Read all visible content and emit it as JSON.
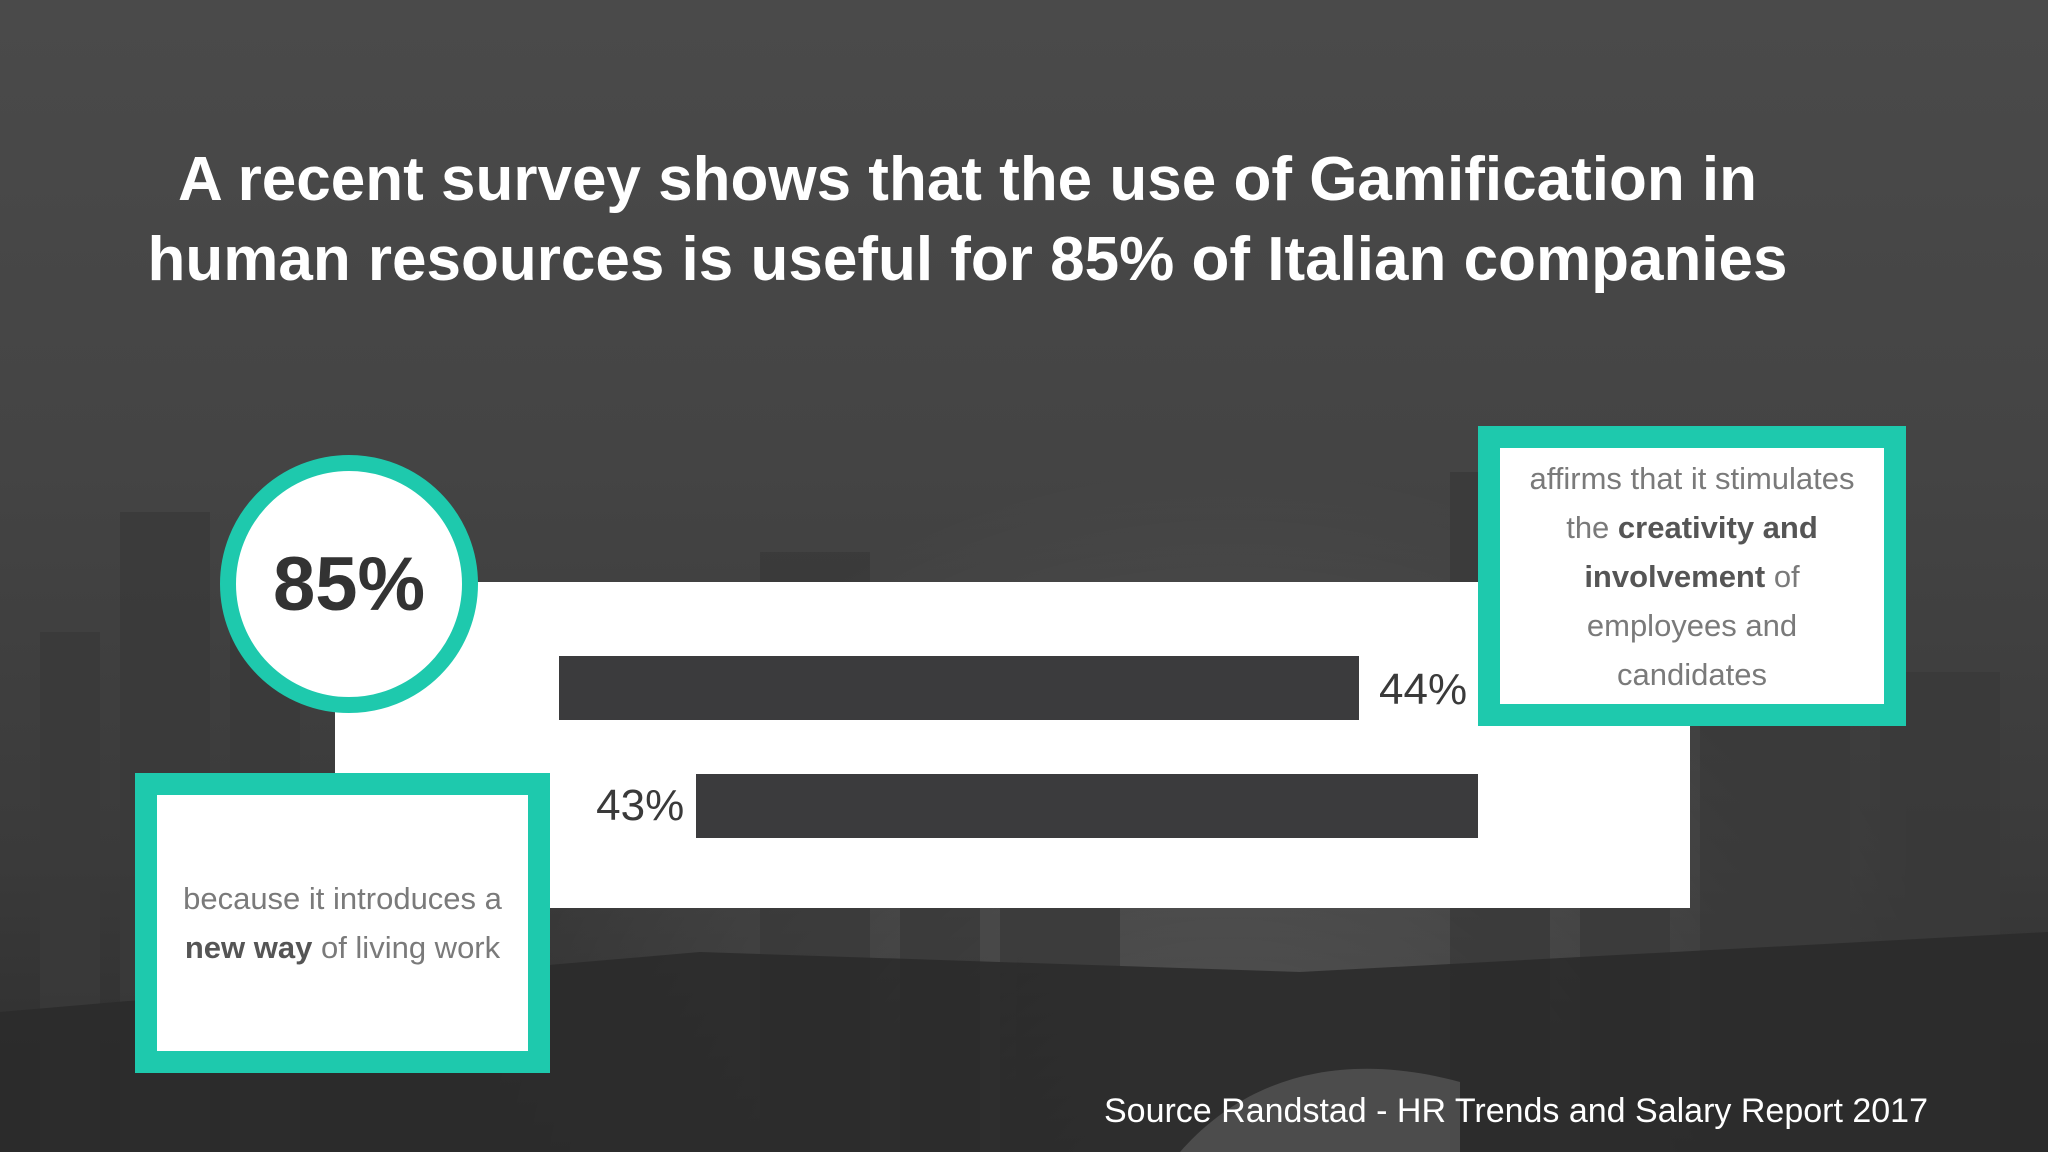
{
  "headline": "A recent survey shows that the use of Gamification in human resources is useful for 85% of Italian companies",
  "badge": {
    "value": "85%"
  },
  "callouts": {
    "right": {
      "pre": "affirms that it stimulates the ",
      "bold": "creativity and involvement",
      "post": " of employees and candidates"
    },
    "left": {
      "pre": "because it introduces a ",
      "bold": "new way",
      "post": " of living work"
    }
  },
  "source": "Source Randstad - HR Trends and Salary Report 2017",
  "colors": {
    "accent": "#1ec9ad",
    "bar": "#3b3b3d",
    "background": "#454545",
    "panel": "#ffffff"
  },
  "chart_data": {
    "type": "bar",
    "orientation": "horizontal",
    "title": "",
    "xlabel": "",
    "ylabel": "",
    "xlim": [
      0,
      50
    ],
    "grid": false,
    "legend": "none",
    "values": [
      44,
      43
    ],
    "labels": [
      "44%",
      "43%"
    ]
  }
}
